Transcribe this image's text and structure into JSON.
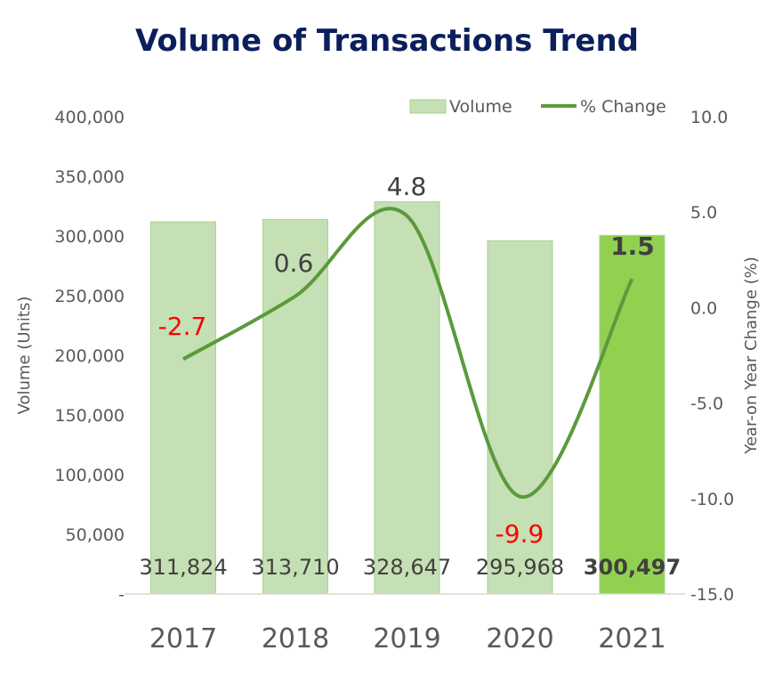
{
  "chart_data": {
    "type": "bar+line",
    "title": "Volume of Transactions Trend",
    "categories": [
      "2017",
      "2018",
      "2019",
      "2020",
      "2021"
    ],
    "series": [
      {
        "name": "Volume",
        "type": "bar",
        "axis": "left",
        "values": [
          311824,
          313710,
          328647,
          295968,
          300497
        ],
        "value_labels": [
          "311,824",
          "313,710",
          "328,647",
          "295,968",
          "300,497"
        ],
        "color": "#c5e0b4",
        "highlight_color": "#92d050",
        "highlight_index": 4
      },
      {
        "name": "% Change",
        "type": "line",
        "smooth": true,
        "axis": "right",
        "values": [
          -2.7,
          0.6,
          4.8,
          -9.9,
          1.5
        ],
        "value_labels": [
          "-2.7",
          "0.6",
          "4.8",
          "-9.9",
          "1.5"
        ],
        "color": "#5b9a3c",
        "negative_label_color": "#ff0000",
        "positive_label_color": "#404040"
      }
    ],
    "ylabel": "Volume (Units)",
    "y2label": "Year-on Year Change (%)",
    "ylim": [
      0,
      400000
    ],
    "y2lim": [
      -15,
      10
    ],
    "yticks": [
      0,
      50000,
      100000,
      150000,
      200000,
      250000,
      300000,
      350000,
      400000
    ],
    "ytick_labels": [
      "-",
      "50,000",
      "100,000",
      "150,000",
      "200,000",
      "250,000",
      "300,000",
      "350,000",
      "400,000"
    ],
    "y2ticks": [
      -15,
      -10,
      -5,
      0,
      5,
      10
    ],
    "y2tick_labels": [
      "-15.0",
      "-10.0",
      "-5.0",
      "0.0",
      "5.0",
      "10.0"
    ],
    "legend": {
      "placement": "top-right",
      "entries": [
        {
          "label": "Volume",
          "kind": "bar"
        },
        {
          "label": "% Change",
          "kind": "line"
        }
      ]
    },
    "grid": false
  }
}
